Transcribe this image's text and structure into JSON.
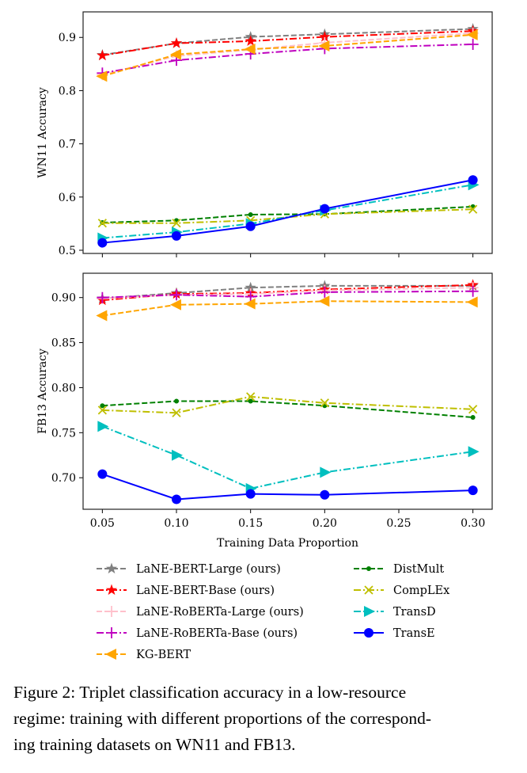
{
  "chart_data": [
    {
      "type": "line",
      "ylabel": "WN11 Accuracy",
      "xlabel": "",
      "x": [
        0.05,
        0.1,
        0.15,
        0.2,
        0.3
      ],
      "xlim": [
        0.037,
        0.313
      ],
      "ylim": [
        0.494,
        0.948
      ],
      "yticks": [
        "0.5",
        "0.6",
        "0.7",
        "0.8",
        "0.9"
      ],
      "ytick_values": [
        0.5,
        0.6,
        0.7,
        0.8,
        0.9
      ],
      "grid": false,
      "series": [
        {
          "name": "LaNE-BERT-Large (ours)",
          "values": [
            0.867,
            0.889,
            0.901,
            0.906,
            0.916
          ]
        },
        {
          "name": "LaNE-BERT-Base (ours)",
          "values": [
            0.866,
            0.889,
            0.893,
            0.901,
            0.912
          ]
        },
        {
          "name": "LaNE-RoBERTa-Large (ours)",
          "values": [
            0.83,
            0.865,
            0.877,
            0.89,
            0.908
          ]
        },
        {
          "name": "LaNE-RoBERTa-Base (ours)",
          "values": [
            0.833,
            0.857,
            0.869,
            0.879,
            0.887
          ]
        },
        {
          "name": "KG-BERT",
          "values": [
            0.827,
            0.868,
            0.878,
            0.884,
            0.905
          ]
        },
        {
          "name": "DistMult",
          "values": [
            0.552,
            0.556,
            0.567,
            0.568,
            0.582
          ]
        },
        {
          "name": "CompLEx",
          "values": [
            0.551,
            0.551,
            0.556,
            0.568,
            0.577
          ]
        },
        {
          "name": "TransD",
          "values": [
            0.523,
            0.534,
            0.55,
            0.575,
            0.623
          ]
        },
        {
          "name": "TransE",
          "values": [
            0.514,
            0.527,
            0.545,
            0.578,
            0.632
          ]
        }
      ]
    },
    {
      "type": "line",
      "ylabel": "FB13 Accuracy",
      "xlabel": "Training Data Proportion",
      "x": [
        0.05,
        0.1,
        0.15,
        0.2,
        0.3
      ],
      "xlim": [
        0.037,
        0.313
      ],
      "xticks": [
        "0.05",
        "0.10",
        "0.15",
        "0.20",
        "0.25",
        "0.30"
      ],
      "xtick_values": [
        0.05,
        0.1,
        0.15,
        0.2,
        0.25,
        0.3
      ],
      "ylim": [
        0.665,
        0.927
      ],
      "yticks": [
        "0.70",
        "0.75",
        "0.80",
        "0.85",
        "0.90"
      ],
      "ytick_values": [
        0.7,
        0.75,
        0.8,
        0.85,
        0.9
      ],
      "grid": false,
      "series": [
        {
          "name": "LaNE-BERT-Large (ours)",
          "values": [
            0.899,
            0.905,
            0.911,
            0.913,
            0.913
          ]
        },
        {
          "name": "LaNE-BERT-Base (ours)",
          "values": [
            0.897,
            0.904,
            0.905,
            0.909,
            0.914
          ]
        },
        {
          "name": "LaNE-RoBERTa-Large (ours)",
          "values": [
            0.899,
            0.903,
            0.904,
            0.908,
            0.911
          ]
        },
        {
          "name": "LaNE-RoBERTa-Base (ours)",
          "values": [
            0.9,
            0.903,
            0.901,
            0.906,
            0.907
          ]
        },
        {
          "name": "KG-BERT",
          "values": [
            0.88,
            0.892,
            0.893,
            0.896,
            0.895
          ]
        },
        {
          "name": "DistMult",
          "values": [
            0.78,
            0.785,
            0.785,
            0.78,
            0.767
          ]
        },
        {
          "name": "CompLEx",
          "values": [
            0.775,
            0.772,
            0.79,
            0.783,
            0.776
          ]
        },
        {
          "name": "TransD",
          "values": [
            0.757,
            0.725,
            0.688,
            0.706,
            0.729
          ]
        },
        {
          "name": "TransE",
          "values": [
            0.704,
            0.676,
            0.682,
            0.681,
            0.686
          ]
        }
      ]
    }
  ],
  "legend": {
    "placement": "bottom",
    "entries": [
      {
        "name": "LaNE-BERT-Large (ours)",
        "color": "#808080",
        "marker": "star",
        "dash": "dashed"
      },
      {
        "name": "LaNE-BERT-Base (ours)",
        "color": "#ff0000",
        "marker": "star",
        "dash": "dashdot"
      },
      {
        "name": "LaNE-RoBERTa-Large (ours)",
        "color": "#ffc0cb",
        "marker": "plus",
        "dash": "dashed"
      },
      {
        "name": "LaNE-RoBERTa-Base (ours)",
        "color": "#bf00bf",
        "marker": "plus",
        "dash": "dashdot"
      },
      {
        "name": "KG-BERT",
        "color": "#ffa500",
        "marker": "triangle-left",
        "dash": "dashed"
      },
      {
        "name": "DistMult",
        "color": "#008000",
        "marker": "dot",
        "dash": "dashed"
      },
      {
        "name": "CompLEx",
        "color": "#bfbf00",
        "marker": "x",
        "dash": "dashdot"
      },
      {
        "name": "TransD",
        "color": "#00bfbf",
        "marker": "triangle-right",
        "dash": "dashdot"
      },
      {
        "name": "TransE",
        "color": "#0000ff",
        "marker": "circle",
        "dash": "solid"
      }
    ]
  },
  "caption": {
    "lines": [
      "Figure 2:  Triplet classification accuracy in a low-resource",
      "regime: training with different proportions of the correspond-",
      "ing training datasets on WN11 and FB13."
    ]
  }
}
